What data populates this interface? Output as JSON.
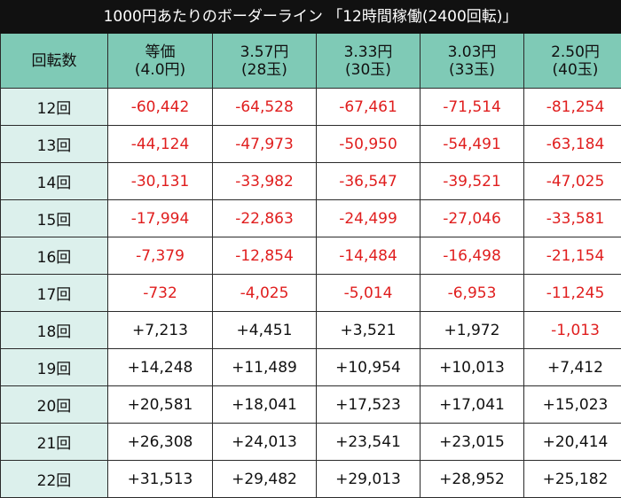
{
  "title": "1000円あたりのボーダーライン 「12時間稼働(2400回転)」",
  "table": {
    "header": [
      "回転数",
      [
        "等価",
        "(4.0円)"
      ],
      [
        "3.57円",
        "(28玉)"
      ],
      [
        "3.33円",
        "(30玉)"
      ],
      [
        "3.03円",
        "(33玉)"
      ],
      [
        "2.50円",
        "(40玉)"
      ]
    ],
    "rows": [
      [
        "12回",
        "-60,442",
        "-64,528",
        "-67,461",
        "-71,514",
        "-81,254"
      ],
      [
        "13回",
        "-44,124",
        "-47,973",
        "-50,950",
        "-54,491",
        "-63,184"
      ],
      [
        "14回",
        "-30,131",
        "-33,982",
        "-36,547",
        "-39,521",
        "-47,025"
      ],
      [
        "15回",
        "-17,994",
        "-22,863",
        "-24,499",
        "-27,046",
        "-33,581"
      ],
      [
        "16回",
        "-7,379",
        "-12,854",
        "-14,484",
        "-16,498",
        "-21,154"
      ],
      [
        "17回",
        "-732",
        "-4,025",
        "-5,014",
        "-6,953",
        "-11,245"
      ],
      [
        "18回",
        "+7,213",
        "+4,451",
        "+3,521",
        "+1,972",
        "-1,013"
      ],
      [
        "19回",
        "+14,248",
        "+11,489",
        "+10,954",
        "+10,013",
        "+7,412"
      ],
      [
        "20回",
        "+20,581",
        "+18,041",
        "+17,523",
        "+17,041",
        "+15,023"
      ],
      [
        "21回",
        "+26,308",
        "+24,013",
        "+23,541",
        "+23,015",
        "+20,414"
      ],
      [
        "22回",
        "+31,513",
        "+29,482",
        "+29,013",
        "+28,952",
        "+25,182"
      ]
    ]
  }
}
